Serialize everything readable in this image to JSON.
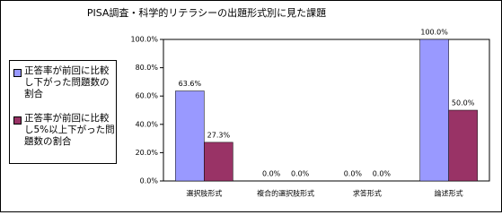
{
  "chart_data": {
    "type": "bar",
    "title": "PISA調査・科学的リテラシーの出題形式別に見た課題",
    "categories": [
      "選択肢形式",
      "複合的選択肢形式",
      "求答形式",
      "論述形式"
    ],
    "series": [
      {
        "name": "正答率が前回に比較し下がった問題数の割合",
        "color": "#9999ff",
        "values": [
          63.6,
          0,
          0,
          100
        ],
        "value_labels": [
          "63.6%",
          "0.0%",
          "0.0%",
          "100.0%"
        ]
      },
      {
        "name": "正答率が前回に比較し5%以上下がった問題数の割合",
        "color": "#993366",
        "values": [
          27.3,
          0,
          0,
          50
        ],
        "value_labels": [
          "27.3%",
          "0.0%",
          "0.0%",
          "50.0%"
        ]
      }
    ],
    "ylim": [
      0,
      100
    ],
    "yticks": [
      {
        "value": 0,
        "label": "0.0%"
      },
      {
        "value": 20,
        "label": "20.0%"
      },
      {
        "value": 40,
        "label": "40.0%"
      },
      {
        "value": 60,
        "label": "60.0%"
      },
      {
        "value": 80,
        "label": "80.0%"
      },
      {
        "value": 100,
        "label": "100.0%"
      }
    ],
    "legend": "left"
  }
}
